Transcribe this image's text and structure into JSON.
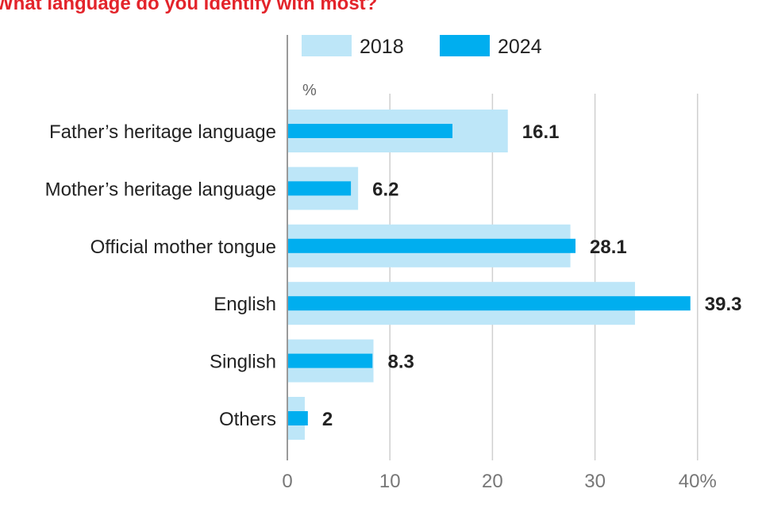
{
  "chart_data": {
    "type": "bar",
    "orientation": "horizontal",
    "title": "What language do you identify with most?",
    "unit_label": "%",
    "categories": [
      "Father’s heritage language",
      "Mother’s heritage language",
      "Official mother tongue",
      "English",
      "Singlish",
      "Others"
    ],
    "series": [
      {
        "name": "2018",
        "values": [
          21.5,
          6.9,
          27.6,
          33.9,
          8.4,
          1.7
        ],
        "color": "#bde6f8"
      },
      {
        "name": "2024",
        "values": [
          16.1,
          6.2,
          28.1,
          39.3,
          8.3,
          2
        ],
        "color": "#00aeef"
      }
    ],
    "data_labels_series": "2024",
    "x_ticks": [
      "0",
      "10",
      "20",
      "30",
      "40%"
    ],
    "xlim": [
      0,
      40
    ],
    "grid": true,
    "legend_position": "top",
    "title_color": "#e3242b"
  }
}
